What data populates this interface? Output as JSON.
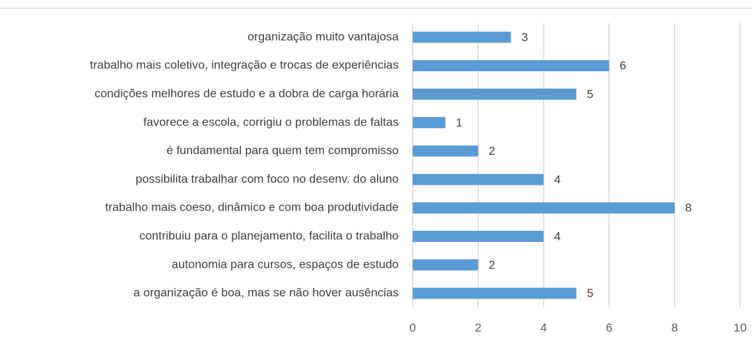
{
  "chart_data": {
    "type": "bar",
    "orientation": "horizontal",
    "categories": [
      "organização muito vantajosa",
      "trabalho mais coletivo, integração e trocas de experiências",
      "condições melhores de estudo e a dobra de carga horária",
      "favorece a escola, corrigiu o problemas de faltas",
      "é fundamental para quem tem compromisso",
      "possibilita trabalhar com foco no desenv. do aluno",
      "trabalho mais coeso, dinâmico e com boa produtividade",
      "contribuiu para o planejamento, facilita o trabalho",
      "autonomia para cursos, espaços de estudo",
      "a organização é boa, mas se não hover ausências"
    ],
    "values": [
      3,
      6,
      5,
      1,
      2,
      4,
      8,
      4,
      2,
      5
    ],
    "color": "#5b9bd5",
    "xlim": [
      0,
      10
    ],
    "xticks": [
      0,
      2,
      4,
      6,
      8,
      10
    ],
    "grid": true
  }
}
